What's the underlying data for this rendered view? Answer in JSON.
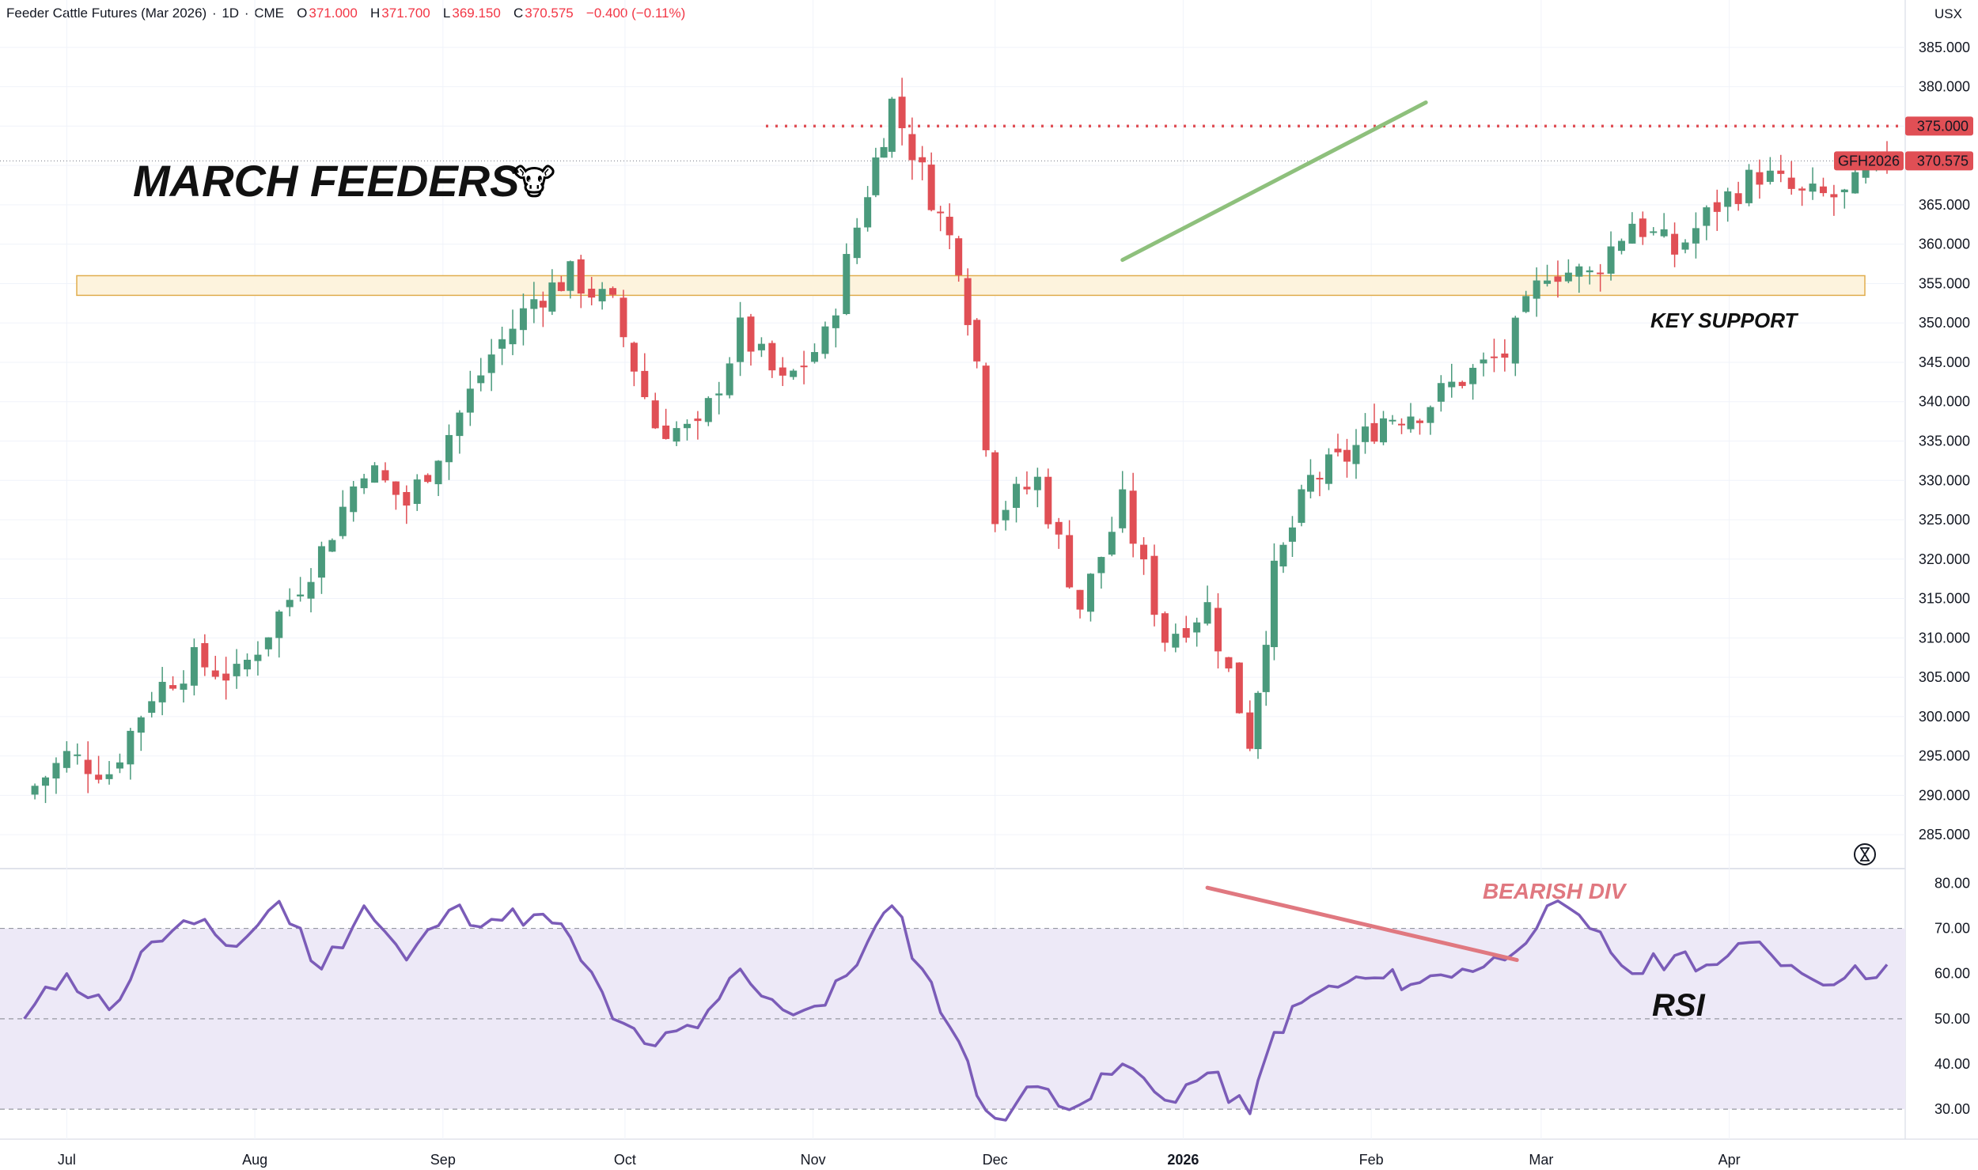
{
  "header": {
    "symbol": "Feeder Cattle Futures (Mar 2026)",
    "interval": "1D",
    "exchange": "CME",
    "o_label": "O",
    "o_value": "371.000",
    "h_label": "H",
    "h_value": "371.700",
    "l_label": "L",
    "l_value": "369.150",
    "c_label": "C",
    "c_value": "370.575",
    "change": "−0.400 (−0.11%)",
    "currency": "USX"
  },
  "annotations": {
    "title": "MARCH FEEDERS",
    "title_emoji": "🐮",
    "support": "KEY SUPPORT",
    "divergence": "BEARISH DIV",
    "rsi": "RSI"
  },
  "price_labels": {
    "resistance": "375.000",
    "symbol_tag": "GFH2026",
    "last": "370.575"
  },
  "colors": {
    "up": "#4a9a7c",
    "down": "#e04f55",
    "rsi_line": "#7b5cb8",
    "rsi_band": "#ede9f7",
    "support_zone": "#fdf3dd",
    "support_border": "#e0ad4e",
    "trend_green": "#8ec07c",
    "div_red": "#e07880",
    "resistance": "#e04f55"
  },
  "chart_data": [
    {
      "type": "candlestick",
      "title": "Feeder Cattle Futures (Mar 2026)",
      "y_ticks": [
        "385.000",
        "380.000",
        "375.000",
        "370.000",
        "365.000",
        "360.000",
        "355.000",
        "350.000",
        "345.000",
        "340.000",
        "335.000",
        "330.000",
        "325.000",
        "320.000",
        "315.000",
        "310.000",
        "305.000",
        "300.000",
        "295.000",
        "290.000",
        "285.000"
      ],
      "x_labels": [
        "Jul",
        "Aug",
        "Sep",
        "Oct",
        "Nov",
        "Dec",
        "2026",
        "Feb",
        "Mar",
        "Apr"
      ],
      "x_label_dates": [
        "2025-07-01",
        "2025-08-01",
        "2025-09-01",
        "2025-10-01",
        "2025-11-01",
        "2025-12-01",
        "2026-01-01",
        "2026-02-01",
        "2026-03-01",
        "2026-04-01"
      ],
      "ylim": [
        282,
        388
      ],
      "resistance_level": 375,
      "support_zone": [
        353.5,
        356
      ],
      "trend_line": [
        [
          "2025-12-22",
          358
        ],
        [
          "2026-02-10",
          378
        ]
      ],
      "close_points": [
        [
          "2025-06-24",
          290
        ],
        [
          "2025-07-01",
          295
        ],
        [
          "2025-07-08",
          293
        ],
        [
          "2025-07-15",
          303
        ],
        [
          "2025-07-22",
          307
        ],
        [
          "2025-07-29",
          305
        ],
        [
          "2025-08-05",
          313
        ],
        [
          "2025-08-12",
          321
        ],
        [
          "2025-08-19",
          332
        ],
        [
          "2025-08-26",
          327
        ],
        [
          "2025-09-02",
          336
        ],
        [
          "2025-09-09",
          346
        ],
        [
          "2025-09-16",
          353
        ],
        [
          "2025-09-22",
          356
        ],
        [
          "2025-09-29",
          352
        ],
        [
          "2025-10-06",
          337
        ],
        [
          "2025-10-13",
          336
        ],
        [
          "2025-10-20",
          349
        ],
        [
          "2025-10-27",
          342
        ],
        [
          "2025-11-03",
          348
        ],
        [
          "2025-11-10",
          367
        ],
        [
          "2025-11-14",
          378
        ],
        [
          "2025-11-19",
          369
        ],
        [
          "2025-11-25",
          358
        ],
        [
          "2025-11-28",
          345
        ],
        [
          "2025-12-01",
          326
        ],
        [
          "2025-12-08",
          330
        ],
        [
          "2025-12-15",
          314
        ],
        [
          "2025-12-22",
          327
        ],
        [
          "2025-12-29",
          310
        ],
        [
          "2026-01-05",
          314
        ],
        [
          "2026-01-12",
          297
        ],
        [
          "2026-01-16",
          318
        ],
        [
          "2026-01-22",
          330
        ],
        [
          "2026-01-28",
          333
        ],
        [
          "2026-02-03",
          338
        ],
        [
          "2026-02-09",
          339
        ],
        [
          "2026-02-16",
          343
        ],
        [
          "2026-02-23",
          346
        ],
        [
          "2026-03-02",
          357
        ],
        [
          "2026-03-09",
          356
        ],
        [
          "2026-03-16",
          363
        ],
        [
          "2026-03-23",
          359
        ],
        [
          "2026-03-30",
          365
        ],
        [
          "2026-04-06",
          369
        ],
        [
          "2026-04-13",
          366
        ],
        [
          "2026-04-20",
          366
        ],
        [
          "2026-04-27",
          371
        ]
      ]
    },
    {
      "type": "line",
      "title": "RSI",
      "y_ticks": [
        "80.00",
        "70.00",
        "60.00",
        "50.00",
        "40.00",
        "30.00"
      ],
      "ylim": [
        26,
        82
      ],
      "bands": [
        30,
        50,
        70
      ],
      "points": [
        [
          "2025-06-24",
          50
        ],
        [
          "2025-07-01",
          60
        ],
        [
          "2025-07-08",
          52
        ],
        [
          "2025-07-15",
          67
        ],
        [
          "2025-07-22",
          71
        ],
        [
          "2025-07-29",
          66
        ],
        [
          "2025-08-05",
          76
        ],
        [
          "2025-08-12",
          61
        ],
        [
          "2025-08-19",
          75
        ],
        [
          "2025-08-26",
          63
        ],
        [
          "2025-09-02",
          74
        ],
        [
          "2025-09-09",
          72
        ],
        [
          "2025-09-16",
          73
        ],
        [
          "2025-09-22",
          68
        ],
        [
          "2025-09-29",
          50
        ],
        [
          "2025-10-06",
          44
        ],
        [
          "2025-10-13",
          48
        ],
        [
          "2025-10-20",
          61
        ],
        [
          "2025-10-27",
          52
        ],
        [
          "2025-11-03",
          53
        ],
        [
          "2025-11-10",
          67
        ],
        [
          "2025-11-14",
          75
        ],
        [
          "2025-11-19",
          61
        ],
        [
          "2025-11-25",
          45
        ],
        [
          "2025-11-28",
          33
        ],
        [
          "2025-12-01",
          28
        ],
        [
          "2025-12-08",
          35
        ],
        [
          "2025-12-15",
          31
        ],
        [
          "2025-12-22",
          40
        ],
        [
          "2025-12-29",
          32
        ],
        [
          "2026-01-05",
          38
        ],
        [
          "2026-01-12",
          29
        ],
        [
          "2026-01-16",
          47
        ],
        [
          "2026-01-22",
          55
        ],
        [
          "2026-01-28",
          58
        ],
        [
          "2026-02-03",
          59
        ],
        [
          "2026-02-09",
          58
        ],
        [
          "2026-02-16",
          61
        ],
        [
          "2026-02-23",
          63
        ],
        [
          "2026-03-02",
          75
        ],
        [
          "2026-03-09",
          70
        ],
        [
          "2026-03-16",
          60
        ],
        [
          "2026-03-23",
          64
        ],
        [
          "2026-03-30",
          62
        ],
        [
          "2026-04-06",
          67
        ],
        [
          "2026-04-13",
          60
        ],
        [
          "2026-04-20",
          59
        ],
        [
          "2026-04-27",
          62
        ]
      ],
      "divergence_line": [
        [
          "2026-01-05",
          79
        ],
        [
          "2026-02-25",
          63
        ]
      ]
    }
  ]
}
